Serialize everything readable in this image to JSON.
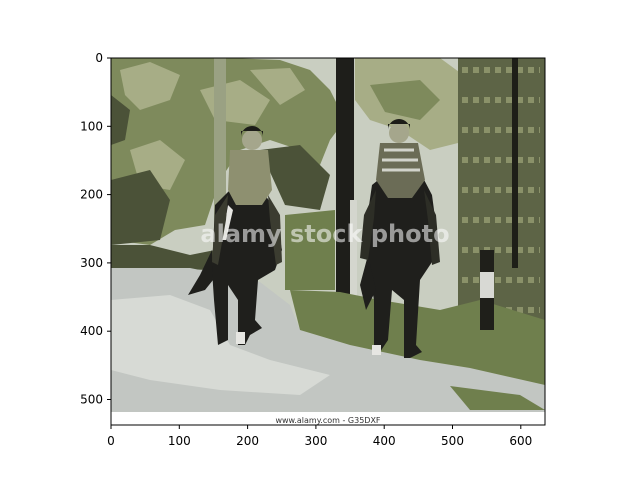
{
  "figure": {
    "watermark_text": "alamy stock photo",
    "caption_text": "www.alamy.com - G35DXF"
  },
  "axes": {
    "x_ticks": [
      "0",
      "100",
      "200",
      "300",
      "400",
      "500",
      "600"
    ],
    "y_ticks": [
      "0",
      "100",
      "200",
      "300",
      "400",
      "500"
    ],
    "xlim": [
      0,
      636
    ],
    "ylim": [
      519,
      0
    ]
  },
  "colors": {
    "sky": "#c9cec1",
    "foliage_dark": "#4b5238",
    "foliage_mid": "#7e8a5c",
    "foliage_light": "#a7ad86",
    "road": "#c2c6c2",
    "grass": "#6f7f4d",
    "horse": "#1f1f1c",
    "wall": "#5d6446"
  }
}
